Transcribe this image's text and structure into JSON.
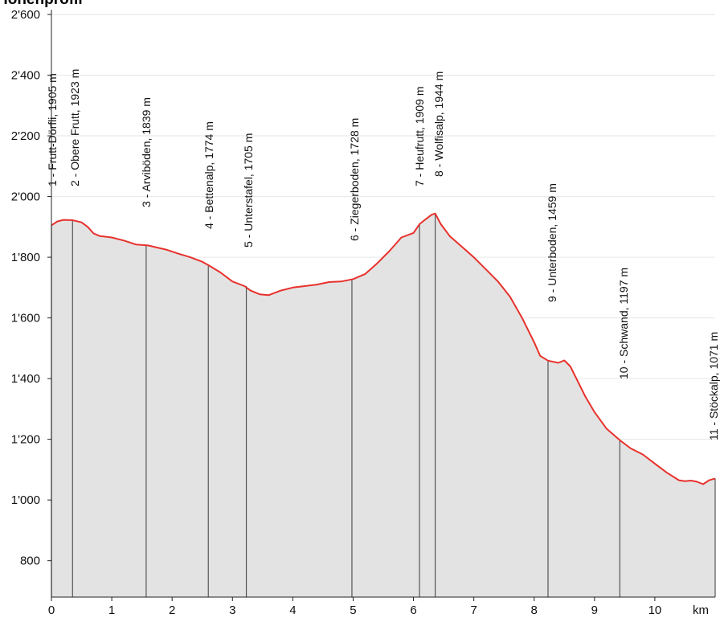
{
  "chart_data": {
    "type": "area",
    "title": "Höhenprofil",
    "xlabel": "km",
    "ylabel": "",
    "xlim": [
      0,
      11
    ],
    "ylim": [
      680,
      2600
    ],
    "x_ticks": [
      0,
      1,
      2,
      3,
      4,
      5,
      6,
      7,
      8,
      9,
      10
    ],
    "x_tick_labels": [
      "0",
      "1",
      "2",
      "3",
      "4",
      "5",
      "6",
      "7",
      "8",
      "9",
      "10"
    ],
    "y_ticks": [
      800,
      1000,
      1200,
      1400,
      1600,
      1800,
      2000,
      2200,
      2400,
      2600
    ],
    "y_tick_labels": [
      "800",
      "1'000",
      "1'200",
      "1'400",
      "1'600",
      "1'800",
      "2'000",
      "2'200",
      "2'400",
      "2'600"
    ],
    "grid": "horizontal",
    "colors": {
      "line": "#e8312c",
      "fill": "#e3e3e3",
      "grid": "#e6e6e6",
      "marker": "#555555"
    },
    "series": [
      {
        "x": [
          0,
          0.1,
          0.2,
          0.35,
          0.5,
          0.6,
          0.7,
          0.8,
          1.0,
          1.2,
          1.4,
          1.6,
          1.75,
          1.9,
          2.1,
          2.3,
          2.5,
          2.6,
          2.8,
          3.0,
          3.2,
          3.3,
          3.45,
          3.6,
          3.8,
          4.0,
          4.2,
          4.4,
          4.6,
          4.8,
          5.0,
          5.2,
          5.4,
          5.6,
          5.8,
          6.0,
          6.1,
          6.2,
          6.3,
          6.36,
          6.45,
          6.6,
          6.8,
          7.0,
          7.2,
          7.4,
          7.6,
          7.8,
          8.0,
          8.1,
          8.23,
          8.4,
          8.5,
          8.6,
          8.7,
          8.85,
          9.0,
          9.2,
          9.42,
          9.6,
          9.8,
          10.0,
          10.2,
          10.4,
          10.5,
          10.6,
          10.7,
          10.8,
          10.9,
          11.0
        ],
        "y": [
          1905,
          1918,
          1923,
          1922,
          1915,
          1900,
          1878,
          1870,
          1865,
          1855,
          1842,
          1839,
          1832,
          1825,
          1812,
          1800,
          1785,
          1774,
          1750,
          1720,
          1705,
          1690,
          1678,
          1675,
          1690,
          1700,
          1705,
          1710,
          1718,
          1720,
          1728,
          1745,
          1780,
          1820,
          1865,
          1880,
          1909,
          1925,
          1940,
          1944,
          1910,
          1870,
          1835,
          1800,
          1760,
          1720,
          1670,
          1600,
          1520,
          1475,
          1459,
          1452,
          1460,
          1440,
          1400,
          1340,
          1290,
          1235,
          1197,
          1170,
          1150,
          1120,
          1090,
          1065,
          1062,
          1064,
          1060,
          1052,
          1065,
          1071
        ]
      }
    ],
    "waypoints": [
      {
        "km": 0.0,
        "elev": 1905,
        "label": "1 - Frutt-Dörfli, 1905 m"
      },
      {
        "km": 0.35,
        "elev": 1923,
        "label": "2 - Obere Frutt, 1923 m"
      },
      {
        "km": 1.57,
        "elev": 1839,
        "label": "3 - Arviböden, 1839 m"
      },
      {
        "km": 2.6,
        "elev": 1774,
        "label": "4 - Bettenalp, 1774 m"
      },
      {
        "km": 3.23,
        "elev": 1705,
        "label": "5 - Unterstafel, 1705 m"
      },
      {
        "km": 4.98,
        "elev": 1728,
        "label": "6 - Ziegerboden, 1728 m"
      },
      {
        "km": 6.1,
        "elev": 1909,
        "label": "7 - Heufrutt, 1909 m"
      },
      {
        "km": 6.36,
        "elev": 1944,
        "label": "8 - Wolfisalp, 1944 m"
      },
      {
        "km": 8.23,
        "elev": 1459,
        "label": "9 - Unterboden, 1459 m"
      },
      {
        "km": 9.42,
        "elev": 1197,
        "label": "10 - Schwand, 1197 m"
      },
      {
        "km": 11.0,
        "elev": 1071,
        "label": "11 - Stöckalp, 1071 m"
      }
    ]
  }
}
